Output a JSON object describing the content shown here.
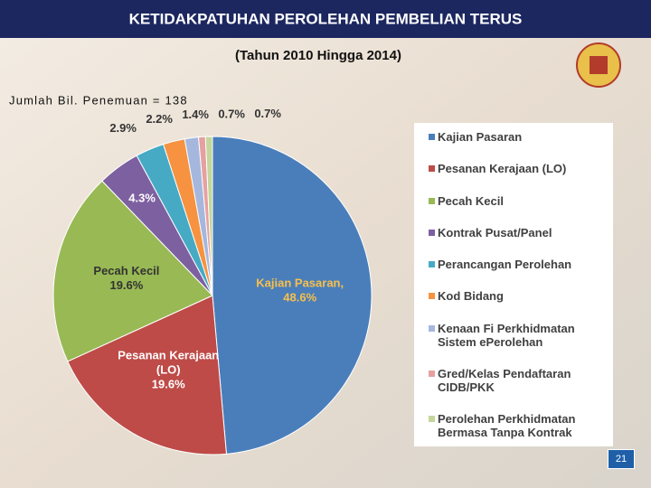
{
  "chart_data": {
    "type": "pie",
    "title": "KETIDAKPATUHAN PEROLEHAN PEMBELIAN TERUS",
    "subtitle": "(Tahun 2010 Hingga 2014)",
    "annotation": "Jumlah Bil. Penemuan = 138",
    "categories": [
      "Kajian Pasaran",
      "Pesanan Kerajaan (LO)",
      "Pecah Kecil",
      "Kontrak Pusat/Panel",
      "Perancangan Perolehan",
      "Kod Bidang",
      "Kenaan Fi Perkhidmatan Sistem ePerolehan",
      "Gred/Kelas Pendaftaran CIDB/PKK",
      "Perolehan Perkhidmatan Bermasa Tanpa Kontrak"
    ],
    "values": [
      48.6,
      19.6,
      19.6,
      4.3,
      2.9,
      2.2,
      1.4,
      0.7,
      0.7
    ],
    "value_labels": [
      "48.6%",
      "19.6%",
      "19.6%",
      "4.3%",
      "2.9%",
      "2.2%",
      "1.4%",
      "0.7%",
      "0.7%"
    ],
    "slice_names": [
      [
        "Kajian Pasaran,"
      ],
      [
        "Pesanan Kerajaan",
        "(LO)"
      ],
      [
        "Pecah Kecil"
      ],
      null,
      null,
      null,
      null,
      null,
      null
    ],
    "colors": [
      "#4a7ebb",
      "#be4b48",
      "#98b954",
      "#7d60a0",
      "#46aac5",
      "#f69240",
      "#a5b7dd",
      "#e6a0a0",
      "#c3d69b"
    ],
    "label_colors": [
      "#f7c04a",
      "#ffffff",
      "#333333",
      "#ffffff",
      "#333333",
      "#333333",
      "#333333",
      "#333333",
      "#333333"
    ],
    "legend": "right",
    "page_number": "21"
  }
}
